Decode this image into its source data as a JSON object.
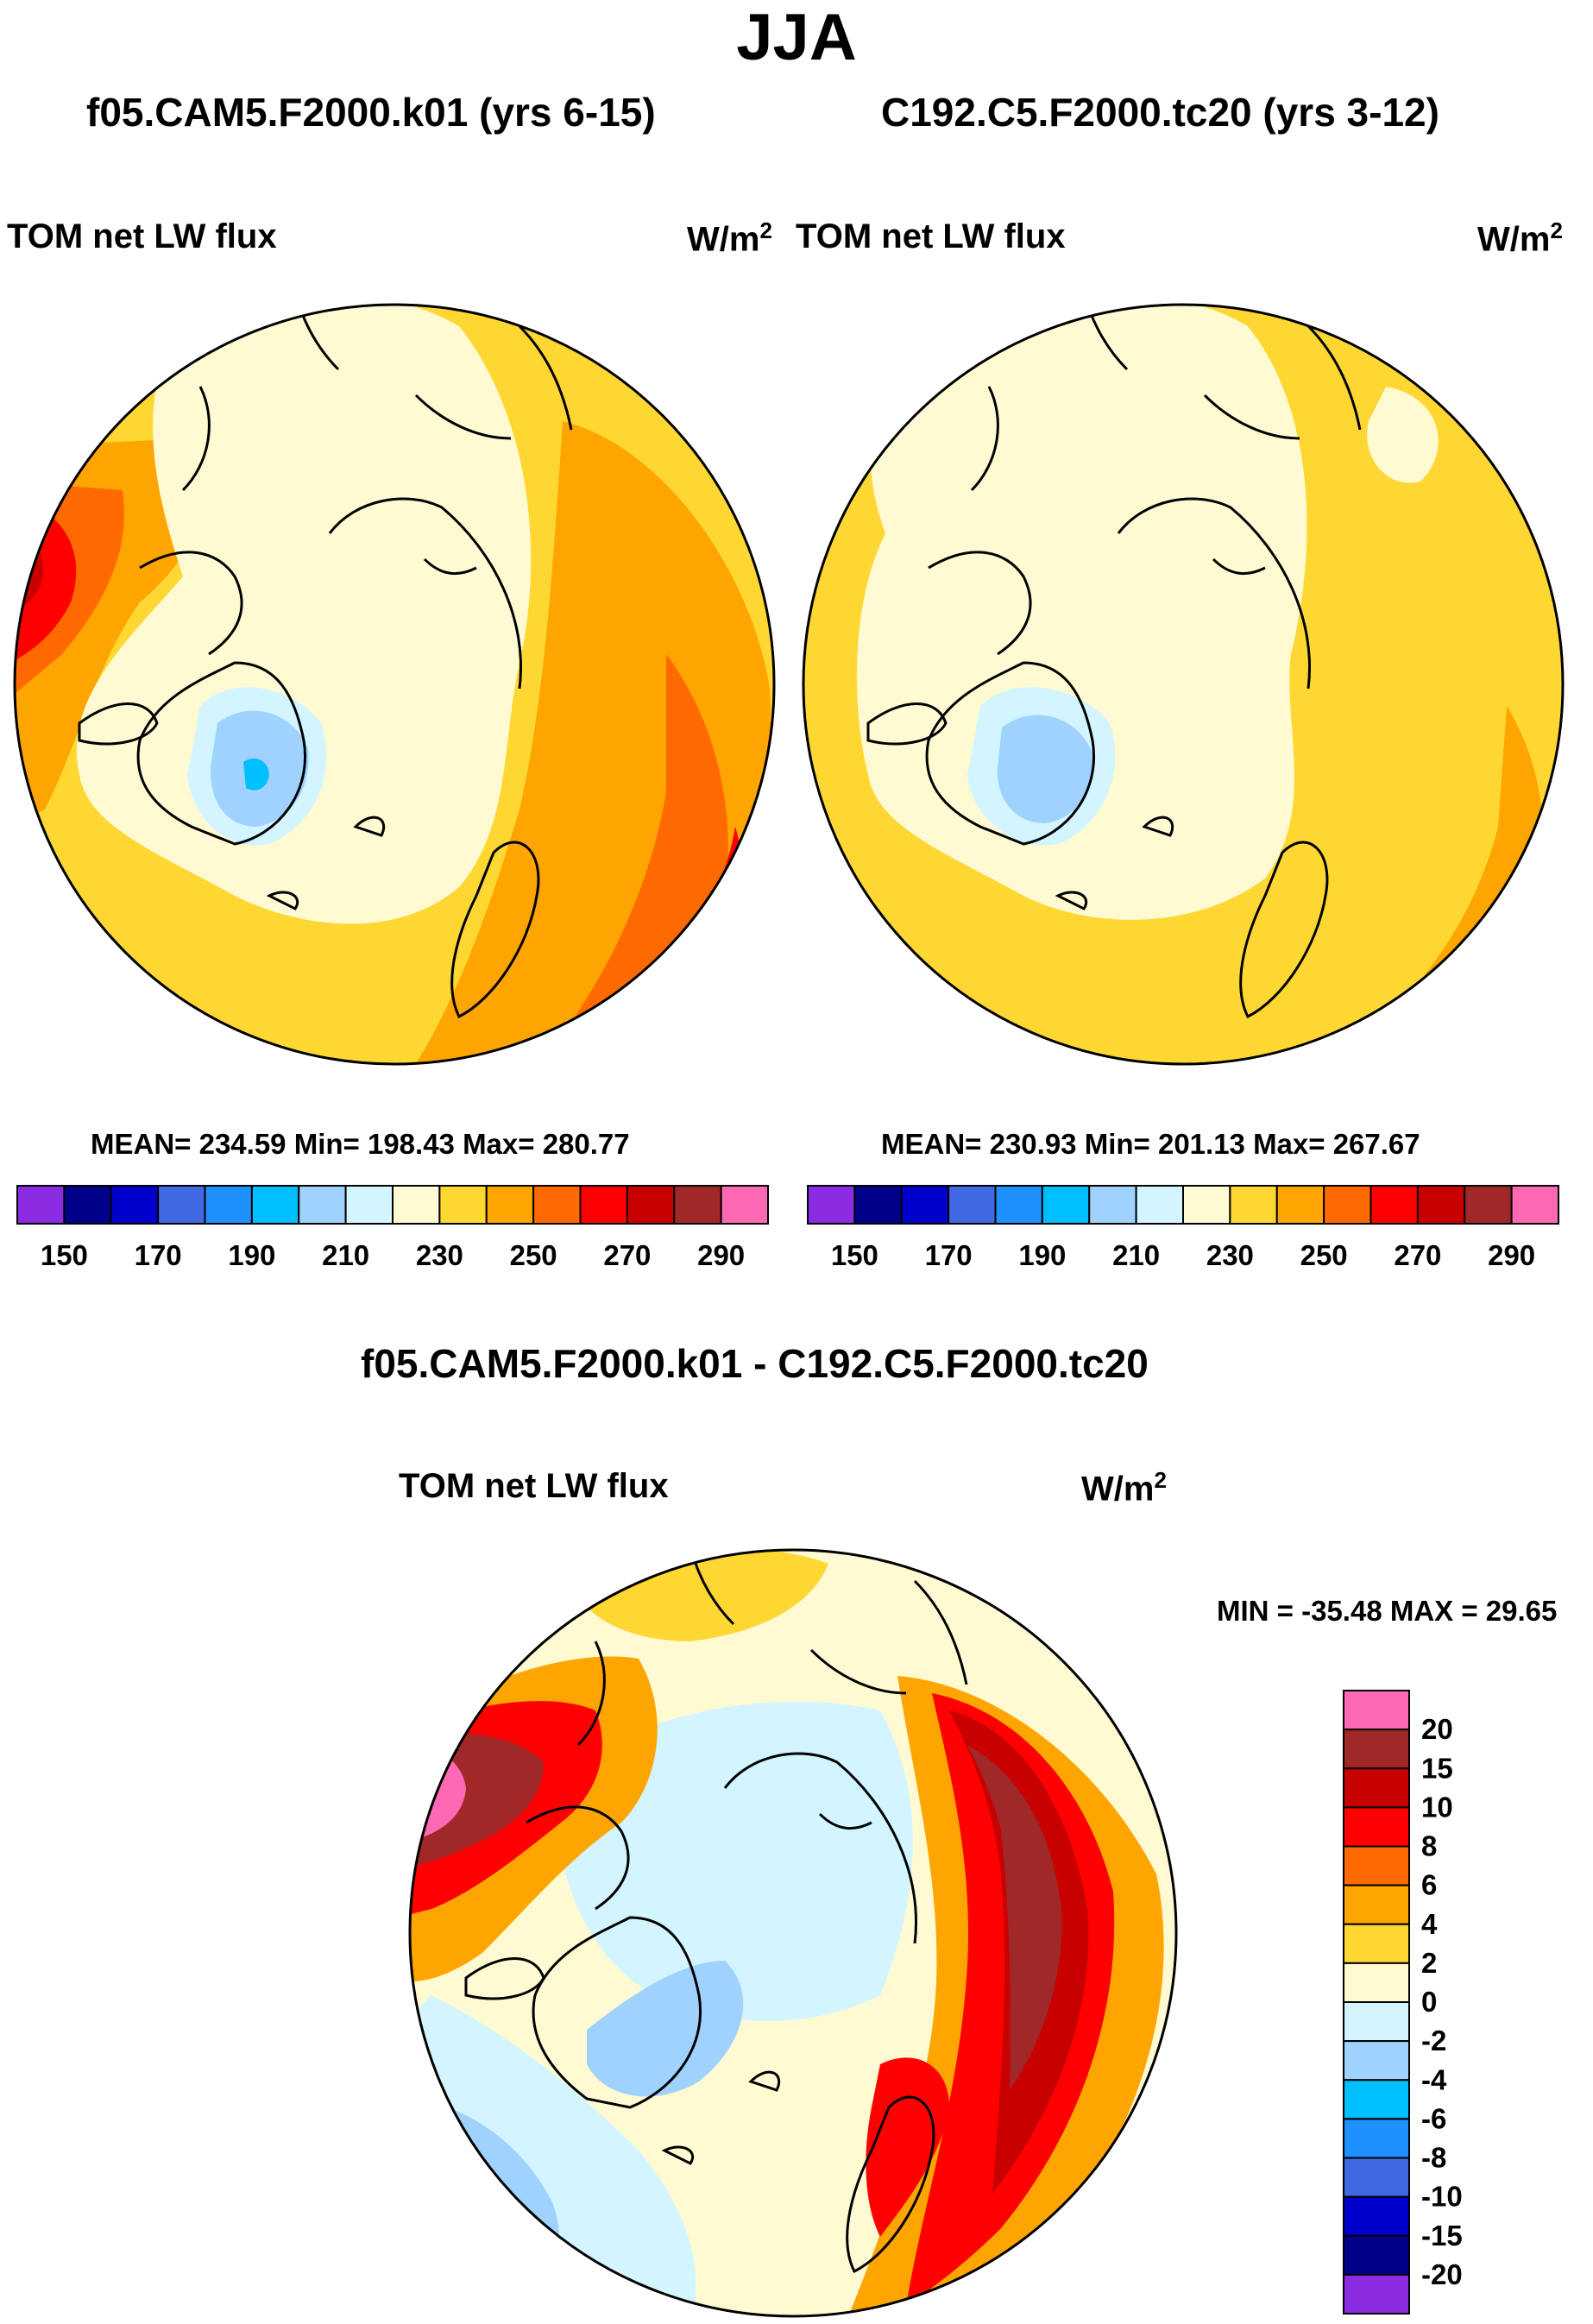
{
  "season": "JJA",
  "panels": [
    {
      "case_title": "f05.CAM5.F2000.k01 (yrs 6-15)",
      "variable": "TOM net LW flux",
      "units_base": "W/m",
      "units_exp": "2",
      "stats": "MEAN= 234.59  Min= 198.43  Max= 280.77"
    },
    {
      "case_title": "C192.C5.F2000.tc20 (yrs 3-12)",
      "variable": "TOM net LW flux",
      "units_base": "W/m",
      "units_exp": "2",
      "stats": "MEAN= 230.93  Min= 201.13  Max= 267.67"
    }
  ],
  "diff_panel": {
    "title": "f05.CAM5.F2000.k01 - C192.C5.F2000.tc20",
    "variable": "TOM net LW flux",
    "units_base": "W/m",
    "units_exp": "2",
    "stats": "MIN = -35.48 MAX =  29.65"
  },
  "colors": {
    "abs_scale": [
      "#8b2be2",
      "#00008b",
      "#0000cd",
      "#4169e1",
      "#1e90ff",
      "#00bfff",
      "#a0d2ff",
      "#d2f5ff",
      "#fffad2",
      "#ffd732",
      "#ffa500",
      "#ff6a00",
      "#ff0000",
      "#c80000",
      "#a02828",
      "#ff69b4"
    ],
    "diff_scale": [
      "#ff69b4",
      "#a02828",
      "#c80000",
      "#ff0000",
      "#ff6a00",
      "#ffa500",
      "#ffd732",
      "#fffad2",
      "#d2f5ff",
      "#a0d2ff",
      "#00bfff",
      "#1e90ff",
      "#4169e1",
      "#0000cd",
      "#00008b",
      "#8b2be2"
    ]
  },
  "chart_data": [
    {
      "type": "heatmap",
      "projection": "polar stereographic (north pole)",
      "title": "f05.CAM5.F2000.k01 (yrs 6-15)",
      "variable": "TOM net LW flux",
      "units": "W/m^2",
      "mean": 234.59,
      "min": 198.43,
      "max": 280.77,
      "contour_levels": [
        150,
        160,
        170,
        180,
        190,
        200,
        210,
        220,
        230,
        240,
        250,
        260,
        270,
        280,
        290
      ],
      "colorbar_tick_labels": [
        "150",
        "170",
        "190",
        "210",
        "230",
        "250",
        "270",
        "290"
      ]
    },
    {
      "type": "heatmap",
      "projection": "polar stereographic (north pole)",
      "title": "C192.C5.F2000.tc20 (yrs 3-12)",
      "variable": "TOM net LW flux",
      "units": "W/m^2",
      "mean": 230.93,
      "min": 201.13,
      "max": 267.67,
      "contour_levels": [
        150,
        160,
        170,
        180,
        190,
        200,
        210,
        220,
        230,
        240,
        250,
        260,
        270,
        280,
        290
      ],
      "colorbar_tick_labels": [
        "150",
        "170",
        "190",
        "210",
        "230",
        "250",
        "270",
        "290"
      ]
    },
    {
      "type": "heatmap",
      "projection": "polar stereographic (north pole)",
      "title": "f05.CAM5.F2000.k01 - C192.C5.F2000.tc20",
      "variable": "TOM net LW flux",
      "units": "W/m^2",
      "min": -35.48,
      "max": 29.65,
      "contour_levels": [
        20,
        15,
        10,
        8,
        6,
        4,
        2,
        0,
        -2,
        -4,
        -6,
        -8,
        -10,
        -15,
        -20
      ],
      "colorbar_tick_labels": [
        "20",
        "15",
        "10",
        "8",
        "6",
        "4",
        "2",
        "0",
        "-2",
        "-4",
        "-6",
        "-8",
        "-10",
        "-15",
        "-20"
      ]
    }
  ]
}
